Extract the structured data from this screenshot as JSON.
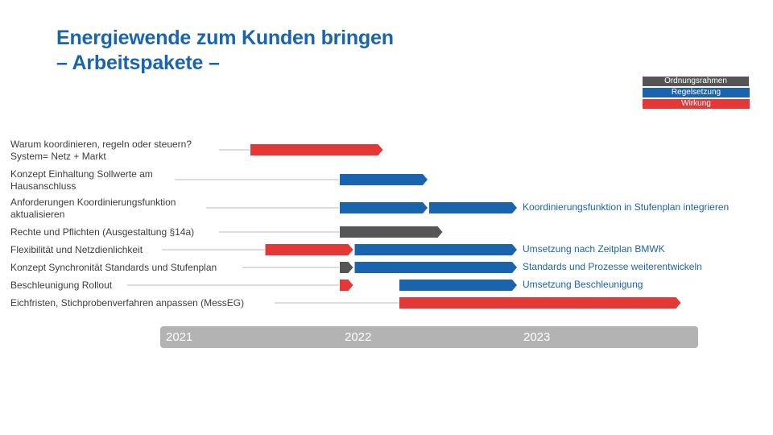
{
  "title": {
    "line1": "Energiewende zum Kunden bringen",
    "line2": "– Arbeitspakete –"
  },
  "legend": [
    {
      "label": "Ordnungsrahmen",
      "color": "#555555"
    },
    {
      "label": "Regelsetzung",
      "color": "#1a64ae"
    },
    {
      "label": "Wirkung",
      "color": "#e63737"
    }
  ],
  "colors": {
    "Ordnungsrahmen": "#555555",
    "Regelsetzung": "#1a64ae",
    "Wirkung": "#e63737",
    "leader": "#bbbbbb"
  },
  "timeline": {
    "start": "2021-01",
    "end": "2023-12",
    "years": [
      "2021",
      "2022",
      "2023"
    ]
  },
  "tasks": [
    {
      "lines": [
        "Warum koordinieren, regeln oder steuern?",
        "System= Netz + Markt"
      ],
      "bars": [
        {
          "type": "Wirkung",
          "start": "2021-07",
          "end": "2022-04"
        }
      ],
      "note": ""
    },
    {
      "lines": [
        "Konzept Einhaltung Sollwerte am",
        "Hausanschluss"
      ],
      "bars": [
        {
          "type": "Regelsetzung",
          "start": "2022-01",
          "end": "2022-07"
        }
      ],
      "note": ""
    },
    {
      "lines": [
        "Anforderungen  Koordinierungsfunktion",
        "aktualisieren"
      ],
      "bars": [
        {
          "type": "Regelsetzung",
          "start": "2022-01",
          "end": "2022-07"
        },
        {
          "type": "Regelsetzung",
          "start": "2022-07",
          "end": "2023-01"
        }
      ],
      "note": "Koordinierungsfunktion  in Stufenplan  integrieren"
    },
    {
      "lines": [
        "Rechte und Pflichten (Ausgestaltung §14a)"
      ],
      "bars": [
        {
          "type": "Ordnungsrahmen",
          "start": "2022-01",
          "end": "2022-08"
        }
      ],
      "note": ""
    },
    {
      "lines": [
        "Flexibilität und Netzdienlichkeit"
      ],
      "bars": [
        {
          "type": "Wirkung",
          "start": "2021-08",
          "end": "2022-02"
        },
        {
          "type": "Regelsetzung",
          "start": "2022-02",
          "end": "2023-01"
        }
      ],
      "note": "Umsetzung nach Zeitplan BMWK"
    },
    {
      "lines": [
        "Konzept Synchronität Standards und Stufenplan"
      ],
      "bars": [
        {
          "type": "Ordnungsrahmen",
          "start": "2022-01",
          "end": "2022-02"
        },
        {
          "type": "Regelsetzung",
          "start": "2022-02",
          "end": "2023-01"
        }
      ],
      "note": "Standards  und Prozesse  weiterentwickeln"
    },
    {
      "lines": [
        "Beschleunigung Rollout"
      ],
      "bars": [
        {
          "type": "Wirkung",
          "start": "2022-01",
          "end": "2022-02"
        },
        {
          "type": "Regelsetzung",
          "start": "2022-05",
          "end": "2023-01"
        }
      ],
      "note": "Umsetzung Beschleunigung"
    },
    {
      "lines": [
        "Eichfristen, Stichprobenverfahren  anpassen (MessEG)"
      ],
      "bars": [
        {
          "type": "Wirkung",
          "start": "2022-05",
          "end": "2023-12"
        }
      ],
      "note": ""
    }
  ]
}
